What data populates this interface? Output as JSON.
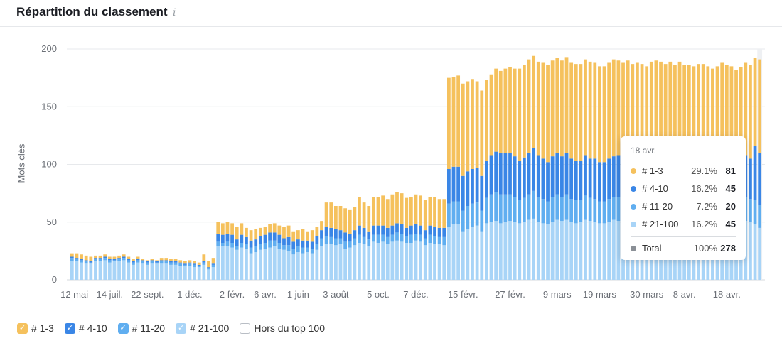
{
  "widget": {
    "title": "Répartition du classement",
    "info_icon": "info-icon"
  },
  "colors": {
    "top3": "#f5c15d",
    "top10": "#3a86e6",
    "top20": "#60aef0",
    "top100": "#a8d4f7",
    "total": "#8a8f96",
    "grid": "#e7e9ec",
    "axis_text": "#6b6f76"
  },
  "legend": [
    {
      "label": "# 1-3",
      "color": "#f5c15d",
      "checked": true
    },
    {
      "label": "# 4-10",
      "color": "#3a86e6",
      "checked": true
    },
    {
      "label": "# 11-20",
      "color": "#60aef0",
      "checked": true
    },
    {
      "label": "# 21-100",
      "color": "#a8d4f7",
      "checked": true
    },
    {
      "label": "Hors du top 100",
      "color": "#ffffff",
      "checked": false
    }
  ],
  "tooltip": {
    "date": "18 avr.",
    "rows": [
      {
        "label": "# 1-3",
        "pct": "29.1%",
        "value": "81",
        "color": "#f5c15d"
      },
      {
        "label": "# 4-10",
        "pct": "16.2%",
        "value": "45",
        "color": "#3a86e6"
      },
      {
        "label": "# 11-20",
        "pct": "7.2%",
        "value": "20",
        "color": "#60aef0"
      },
      {
        "label": "# 21-100",
        "pct": "16.2%",
        "value": "45",
        "color": "#a8d4f7"
      }
    ],
    "total": {
      "label": "Total",
      "pct": "100%",
      "value": "278",
      "color": "#8a8f96"
    }
  },
  "chart_data": {
    "type": "bar",
    "stacked": true,
    "ylabel": "Mots clés",
    "ylim": [
      0,
      200
    ],
    "yticks": [
      0,
      50,
      100,
      150,
      200
    ],
    "grid": true,
    "x_tick_labels": [
      "12 mai",
      "14 juil.",
      "22 sept.",
      "1 déc.",
      "2 févr.",
      "6 avr.",
      "1 juin",
      "3 août",
      "5 oct.",
      "7 déc.",
      "15 févr.",
      "27 févr.",
      "9 mars",
      "19 mars",
      "30 mars",
      "8 avr.",
      "18 avr."
    ],
    "x_tick_positions": [
      0.5,
      8,
      16,
      25,
      34,
      41,
      48,
      56,
      65,
      73,
      83,
      93,
      103,
      112,
      122,
      130,
      139
    ],
    "num_bars": 147,
    "segments": [
      {
        "name": "# 21-100",
        "values": [
          16,
          16,
          15,
          14,
          14,
          16,
          16,
          17,
          15,
          16,
          16,
          17,
          15,
          13,
          15,
          14,
          13,
          14,
          14,
          14,
          14,
          13,
          13,
          12,
          12,
          12,
          11,
          11,
          13,
          9,
          11,
          29,
          29,
          29,
          28,
          26,
          28,
          27,
          23,
          24,
          26,
          27,
          28,
          29,
          27,
          26,
          25,
          22,
          24,
          23,
          24,
          23,
          26,
          29,
          31,
          31,
          30,
          31,
          27,
          28,
          30,
          32,
          31,
          29,
          33,
          32,
          33,
          31,
          33,
          34,
          33,
          32,
          32,
          34,
          33,
          30,
          32,
          31,
          31,
          30,
          46,
          48,
          48,
          42,
          44,
          46,
          47,
          42,
          49,
          50,
          51,
          49,
          50,
          51,
          50,
          49,
          50,
          52,
          53,
          50,
          49,
          48,
          50,
          52,
          51,
          52,
          50,
          49,
          50,
          52,
          51,
          50,
          49,
          49,
          50,
          52,
          51,
          50,
          52,
          50,
          51,
          49,
          48,
          52,
          50,
          51,
          49,
          50,
          51,
          52,
          50,
          49,
          51,
          52,
          50,
          50,
          49,
          50,
          51,
          52,
          50,
          49,
          50,
          51,
          50,
          48,
          45
        ],
        "color": "#a8d4f7"
      },
      {
        "name": "# 11-20",
        "values": [
          3,
          2,
          2,
          2,
          1,
          2,
          2,
          2,
          2,
          1,
          2,
          2,
          2,
          2,
          2,
          2,
          2,
          2,
          1,
          2,
          2,
          2,
          2,
          2,
          1,
          2,
          2,
          1,
          2,
          1,
          2,
          4,
          3,
          4,
          4,
          3,
          4,
          4,
          5,
          5,
          5,
          5,
          6,
          5,
          5,
          4,
          5,
          5,
          5,
          5,
          4,
          4,
          5,
          7,
          7,
          6,
          6,
          5,
          6,
          5,
          6,
          7,
          6,
          6,
          6,
          7,
          6,
          6,
          6,
          7,
          7,
          6,
          7,
          6,
          6,
          6,
          7,
          7,
          6,
          7,
          20,
          20,
          20,
          18,
          20,
          20,
          20,
          18,
          22,
          24,
          25,
          25,
          24,
          23,
          22,
          20,
          21,
          22,
          24,
          22,
          21,
          20,
          22,
          22,
          21,
          22,
          20,
          20,
          19,
          21,
          20,
          20,
          19,
          19,
          20,
          20,
          21,
          20,
          20,
          19,
          20,
          21,
          20,
          20,
          21,
          20,
          20,
          21,
          19,
          20,
          20,
          21,
          20,
          20,
          21,
          20,
          19,
          20,
          21,
          20,
          20,
          19,
          20,
          21,
          20,
          21,
          20
        ],
        "color": "#60aef0"
      },
      {
        "name": "# 4-10",
        "values": [
          1,
          1,
          1,
          1,
          1,
          1,
          1,
          1,
          1,
          1,
          1,
          1,
          1,
          1,
          1,
          1,
          1,
          1,
          1,
          1,
          1,
          1,
          1,
          1,
          1,
          1,
          1,
          1,
          1,
          1,
          1,
          7,
          7,
          7,
          7,
          6,
          7,
          6,
          6,
          6,
          7,
          7,
          7,
          7,
          7,
          6,
          7,
          6,
          6,
          6,
          6,
          6,
          7,
          7,
          8,
          8,
          8,
          7,
          8,
          7,
          7,
          8,
          8,
          7,
          8,
          8,
          8,
          8,
          8,
          8,
          8,
          7,
          8,
          8,
          8,
          7,
          8,
          8,
          8,
          8,
          30,
          30,
          30,
          30,
          30,
          30,
          30,
          30,
          32,
          34,
          35,
          36,
          36,
          36,
          35,
          34,
          35,
          36,
          37,
          36,
          35,
          34,
          35,
          36,
          35,
          36,
          35,
          34,
          34,
          35,
          34,
          35,
          34,
          34,
          35,
          35,
          36,
          35,
          35,
          34,
          35,
          36,
          35,
          35,
          36,
          35,
          35,
          36,
          34,
          35,
          35,
          36,
          35,
          35,
          36,
          35,
          34,
          35,
          36,
          35,
          35,
          34,
          35,
          36,
          35,
          47,
          45
        ],
        "color": "#3a86e6"
      },
      {
        "name": "# 1-3",
        "values": [
          3,
          4,
          4,
          4,
          4,
          2,
          2,
          2,
          2,
          2,
          2,
          2,
          2,
          2,
          2,
          1,
          1,
          1,
          1,
          2,
          2,
          2,
          2,
          2,
          2,
          2,
          2,
          2,
          6,
          5,
          5,
          10,
          10,
          10,
          10,
          11,
          10,
          8,
          9,
          9,
          7,
          7,
          7,
          8,
          8,
          10,
          10,
          9,
          8,
          10,
          8,
          10,
          8,
          8,
          21,
          22,
          20,
          21,
          21,
          21,
          20,
          25,
          22,
          22,
          25,
          25,
          26,
          25,
          27,
          27,
          27,
          26,
          25,
          26,
          26,
          26,
          25,
          26,
          25,
          25,
          79,
          78,
          79,
          80,
          78,
          78,
          75,
          74,
          70,
          70,
          72,
          71,
          73,
          74,
          76,
          80,
          80,
          81,
          80,
          81,
          83,
          84,
          83,
          82,
          83,
          83,
          83,
          84,
          84,
          83,
          84,
          83,
          83,
          83,
          83,
          84,
          82,
          83,
          83,
          84,
          82,
          81,
          82,
          82,
          83,
          83,
          83,
          82,
          82,
          82,
          81,
          80,
          79,
          80,
          80,
          80,
          81,
          80,
          80,
          79,
          80,
          80,
          79,
          80,
          81,
          76,
          81
        ],
        "color": "#f5c15d"
      }
    ],
    "tooltip_bar_index": 146
  }
}
